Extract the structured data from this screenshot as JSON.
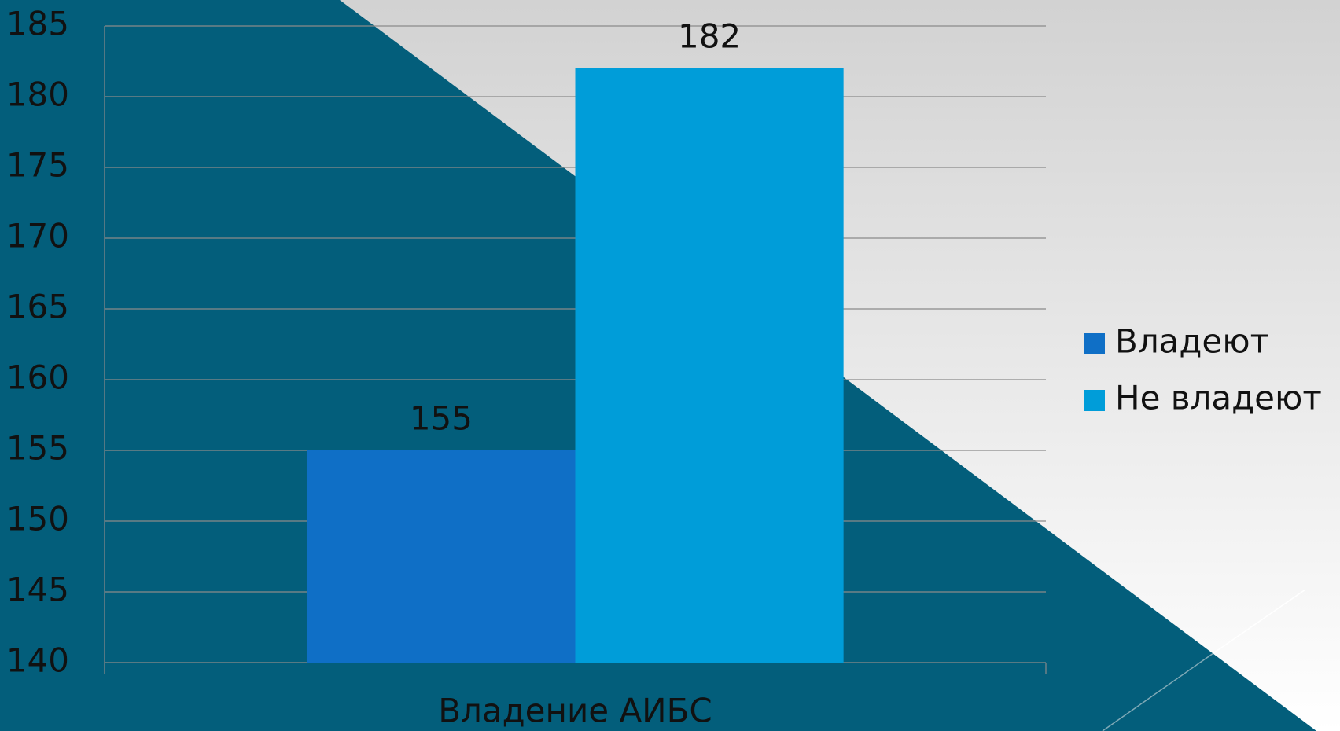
{
  "chart_data": {
    "type": "bar",
    "categories": [
      "Владение АИБС"
    ],
    "series": [
      {
        "name": "Владеют",
        "color": "#0f6fc6",
        "values": [
          155
        ]
      },
      {
        "name": "Не владеют",
        "color": "#009dd9",
        "values": [
          182
        ]
      }
    ],
    "ylim": [
      140,
      185
    ],
    "yticks": [
      140,
      145,
      150,
      155,
      160,
      165,
      170,
      175,
      180,
      185
    ],
    "grid": true,
    "legend": "right"
  }
}
